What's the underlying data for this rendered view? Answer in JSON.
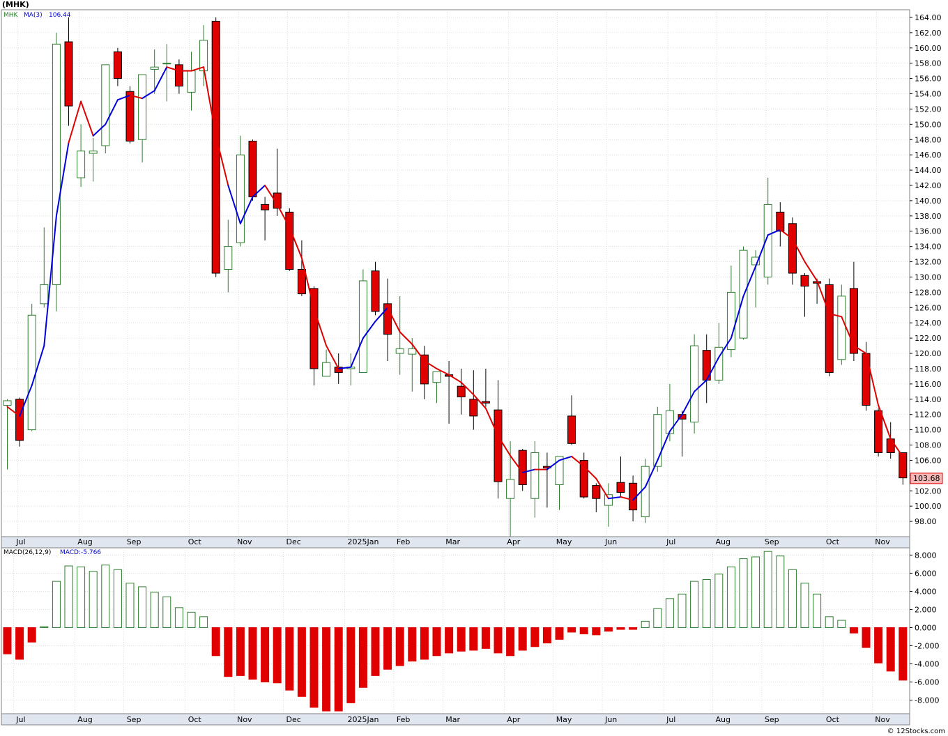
{
  "title": "(MHK)",
  "footer": "© 12Stocks.com",
  "colors": {
    "up_candle": "#2e7d2e",
    "down_candle": "#e00000",
    "ma_up": "#0000dd",
    "ma_down": "#e00000",
    "grid": "#cccccc",
    "price_tag_bg": "#f4b8b8",
    "price_tag_border": "#e00000"
  },
  "chart_data": [
    {
      "type": "candlestick",
      "ticker_label": "MHK",
      "ma_label": "MA(3)",
      "ma_value": "106.44",
      "last_price": "103.68",
      "ylim": [
        96,
        165
      ],
      "yticks": [
        "98.00",
        "100.00",
        "102.00",
        "104.00",
        "106.00",
        "108.00",
        "110.00",
        "112.00",
        "114.00",
        "116.00",
        "118.00",
        "120.00",
        "122.00",
        "124.00",
        "126.00",
        "128.00",
        "130.00",
        "132.00",
        "134.00",
        "136.00",
        "138.00",
        "140.00",
        "142.00",
        "144.00",
        "146.00",
        "148.00",
        "150.00",
        "152.00",
        "154.00",
        "156.00",
        "158.00",
        "160.00",
        "162.00",
        "164.00"
      ],
      "month_labels": [
        {
          "label": "Jul",
          "week": 1
        },
        {
          "label": "Aug",
          "week": 6
        },
        {
          "label": "Sep",
          "week": 10
        },
        {
          "label": "Oct",
          "week": 15
        },
        {
          "label": "Nov",
          "week": 19
        },
        {
          "label": "Dec",
          "week": 23
        },
        {
          "label": "2025Jan",
          "week": 28
        },
        {
          "label": "Feb",
          "week": 32
        },
        {
          "label": "Mar",
          "week": 36
        },
        {
          "label": "Apr",
          "week": 41
        },
        {
          "label": "May",
          "week": 45
        },
        {
          "label": "Jun",
          "week": 49
        },
        {
          "label": "Jul",
          "week": 54
        },
        {
          "label": "Aug",
          "week": 58
        },
        {
          "label": "Sep",
          "week": 62
        },
        {
          "label": "Oct",
          "week": 67
        },
        {
          "label": "Nov",
          "week": 71
        }
      ],
      "candles": [
        {
          "o": 113.2,
          "h": 114.0,
          "l": 104.8,
          "c": 113.8
        },
        {
          "o": 114.0,
          "h": 114.2,
          "l": 107.8,
          "c": 108.6
        },
        {
          "o": 110.0,
          "h": 126.5,
          "l": 109.8,
          "c": 125.0
        },
        {
          "o": 126.5,
          "h": 136.5,
          "l": 126.0,
          "c": 129.0
        },
        {
          "o": 129.0,
          "h": 162.0,
          "l": 125.5,
          "c": 160.5
        },
        {
          "o": 160.8,
          "h": 164.0,
          "l": 149.8,
          "c": 152.4
        },
        {
          "o": 143.0,
          "h": 150.0,
          "l": 141.8,
          "c": 146.5
        },
        {
          "o": 146.2,
          "h": 148.2,
          "l": 142.5,
          "c": 146.5
        },
        {
          "o": 147.2,
          "h": 157.8,
          "l": 146.2,
          "c": 157.8
        },
        {
          "o": 159.5,
          "h": 160.0,
          "l": 155.0,
          "c": 156.0
        },
        {
          "o": 154.3,
          "h": 155.0,
          "l": 147.5,
          "c": 147.8
        },
        {
          "o": 148.0,
          "h": 156.5,
          "l": 145.0,
          "c": 156.5
        },
        {
          "o": 157.2,
          "h": 159.8,
          "l": 154.0,
          "c": 157.5
        },
        {
          "o": 158.0,
          "h": 160.5,
          "l": 153.0,
          "c": 158.0
        },
        {
          "o": 157.8,
          "h": 158.5,
          "l": 154.0,
          "c": 155.0
        },
        {
          "o": 154.2,
          "h": 159.5,
          "l": 151.8,
          "c": 157.0
        },
        {
          "o": 157.0,
          "h": 163.0,
          "l": 155.0,
          "c": 161.0
        },
        {
          "o": 163.5,
          "h": 164.0,
          "l": 130.0,
          "c": 130.5
        },
        {
          "o": 131.0,
          "h": 137.5,
          "l": 128.0,
          "c": 134.0
        },
        {
          "o": 134.5,
          "h": 148.5,
          "l": 134.0,
          "c": 146.0
        },
        {
          "o": 147.8,
          "h": 148.0,
          "l": 140.0,
          "c": 140.5
        },
        {
          "o": 139.5,
          "h": 140.5,
          "l": 134.8,
          "c": 138.8
        },
        {
          "o": 141.0,
          "h": 146.8,
          "l": 138.0,
          "c": 139.0
        },
        {
          "o": 138.5,
          "h": 139.0,
          "l": 130.8,
          "c": 131.0
        },
        {
          "o": 131.0,
          "h": 134.8,
          "l": 127.5,
          "c": 127.8
        },
        {
          "o": 128.5,
          "h": 128.8,
          "l": 115.8,
          "c": 118.0
        },
        {
          "o": 117.0,
          "h": 120.5,
          "l": 117.0,
          "c": 118.8
        },
        {
          "o": 118.2,
          "h": 120.0,
          "l": 116.0,
          "c": 117.5
        },
        {
          "o": 118.0,
          "h": 120.0,
          "l": 115.8,
          "c": 118.2
        },
        {
          "o": 117.5,
          "h": 131.0,
          "l": 117.5,
          "c": 129.5
        },
        {
          "o": 130.8,
          "h": 132.0,
          "l": 125.0,
          "c": 125.5
        },
        {
          "o": 126.5,
          "h": 129.8,
          "l": 119.0,
          "c": 122.5
        },
        {
          "o": 120.0,
          "h": 127.5,
          "l": 117.2,
          "c": 120.6
        },
        {
          "o": 119.9,
          "h": 122.0,
          "l": 115.0,
          "c": 120.6
        },
        {
          "o": 119.8,
          "h": 121.0,
          "l": 114.0,
          "c": 116.0
        },
        {
          "o": 116.2,
          "h": 117.5,
          "l": 113.5,
          "c": 117.6
        },
        {
          "o": 117.2,
          "h": 119.0,
          "l": 110.8,
          "c": 117.0
        },
        {
          "o": 115.7,
          "h": 118.0,
          "l": 112.0,
          "c": 114.3
        },
        {
          "o": 114.0,
          "h": 117.8,
          "l": 110.0,
          "c": 111.8
        },
        {
          "o": 113.7,
          "h": 118.0,
          "l": 113.0,
          "c": 113.5
        },
        {
          "o": 112.6,
          "h": 116.5,
          "l": 101.0,
          "c": 103.2
        },
        {
          "o": 101.0,
          "h": 108.5,
          "l": 96.0,
          "c": 103.5
        },
        {
          "o": 107.3,
          "h": 107.5,
          "l": 102.0,
          "c": 102.8
        },
        {
          "o": 101.0,
          "h": 108.5,
          "l": 98.5,
          "c": 107.0
        },
        {
          "o": 105.2,
          "h": 107.0,
          "l": 99.8,
          "c": 105.0
        },
        {
          "o": 102.8,
          "h": 106.5,
          "l": 99.5,
          "c": 106.5
        },
        {
          "o": 111.8,
          "h": 114.5,
          "l": 108.0,
          "c": 108.2
        },
        {
          "o": 106.0,
          "h": 107.0,
          "l": 101.0,
          "c": 101.2
        },
        {
          "o": 102.7,
          "h": 103.0,
          "l": 99.2,
          "c": 101.0
        },
        {
          "o": 100.1,
          "h": 103.0,
          "l": 97.3,
          "c": 101.5
        },
        {
          "o": 103.1,
          "h": 106.5,
          "l": 101.3,
          "c": 101.8
        },
        {
          "o": 103.0,
          "h": 104.0,
          "l": 98.0,
          "c": 99.5
        },
        {
          "o": 98.6,
          "h": 106.2,
          "l": 97.8,
          "c": 105.2
        },
        {
          "o": 105.2,
          "h": 113.0,
          "l": 104.5,
          "c": 112.0
        },
        {
          "o": 109.5,
          "h": 116.0,
          "l": 108.5,
          "c": 112.5
        },
        {
          "o": 112.0,
          "h": 112.5,
          "l": 106.5,
          "c": 111.4
        },
        {
          "o": 111.0,
          "h": 122.5,
          "l": 109.5,
          "c": 121.0
        },
        {
          "o": 120.4,
          "h": 122.5,
          "l": 113.5,
          "c": 116.5
        },
        {
          "o": 116.5,
          "h": 124.0,
          "l": 116.0,
          "c": 120.8
        },
        {
          "o": 120.5,
          "h": 131.5,
          "l": 119.5,
          "c": 128.0
        },
        {
          "o": 122.0,
          "h": 134.0,
          "l": 121.8,
          "c": 133.5
        },
        {
          "o": 131.6,
          "h": 133.5,
          "l": 126.0,
          "c": 132.6
        },
        {
          "o": 130.0,
          "h": 143.0,
          "l": 129.0,
          "c": 139.5
        },
        {
          "o": 138.5,
          "h": 139.8,
          "l": 134.0,
          "c": 136.0
        },
        {
          "o": 137.0,
          "h": 137.8,
          "l": 129.0,
          "c": 130.5
        },
        {
          "o": 130.2,
          "h": 130.5,
          "l": 124.8,
          "c": 128.8
        },
        {
          "o": 129.4,
          "h": 129.8,
          "l": 126.5,
          "c": 129.2
        },
        {
          "o": 129.0,
          "h": 129.8,
          "l": 117.0,
          "c": 117.5
        },
        {
          "o": 119.2,
          "h": 129.0,
          "l": 118.5,
          "c": 127.5
        },
        {
          "o": 128.5,
          "h": 132.0,
          "l": 119.0,
          "c": 120.0
        },
        {
          "o": 120.0,
          "h": 121.5,
          "l": 112.5,
          "c": 113.2
        },
        {
          "o": 112.5,
          "h": 112.8,
          "l": 106.5,
          "c": 107.0
        },
        {
          "o": 108.8,
          "h": 111.0,
          "l": 106.2,
          "c": 107.0
        },
        {
          "o": 107.0,
          "h": 107.0,
          "l": 102.8,
          "c": 103.7
        }
      ],
      "ma3": [
        113.0,
        111.8,
        115.8,
        121.0,
        138.0,
        147.6,
        153.0,
        148.5,
        150.0,
        153.2,
        153.8,
        153.4,
        154.4,
        157.5,
        157.0,
        157.0,
        157.5,
        148.5,
        142.0,
        137.0,
        140.5,
        142.0,
        139.5,
        136.5,
        132.5,
        125.8,
        121.0,
        118.0,
        118.2,
        122.0,
        124.2,
        126.0,
        122.8,
        121.2,
        119.0,
        118.0,
        117.2,
        116.2,
        114.6,
        112.8,
        109.2,
        106.6,
        104.4,
        104.8,
        104.8,
        106.0,
        106.5,
        105.2,
        103.6,
        101.0,
        101.2,
        100.8,
        102.5,
        106.0,
        109.8,
        112.0,
        115.0,
        116.5,
        119.5,
        122.0,
        127.5,
        131.4,
        135.5,
        136.2,
        135.0,
        132.0,
        129.5,
        125.2,
        124.8,
        121.0,
        120.0,
        113.2,
        108.8,
        106.44
      ],
      "ma_color_flags": [
        "down",
        "down",
        "up",
        "up",
        "up",
        "up",
        "down",
        "down",
        "up",
        "up",
        "up",
        "down",
        "up",
        "up",
        "down",
        "down",
        "down",
        "down",
        "down",
        "up",
        "up",
        "up",
        "down",
        "down",
        "down",
        "down",
        "down",
        "down",
        "up",
        "up",
        "up",
        "up",
        "down",
        "down",
        "down",
        "down",
        "down",
        "down",
        "down",
        "down",
        "down",
        "down",
        "down",
        "up",
        "down",
        "up",
        "up",
        "down",
        "down",
        "down",
        "up",
        "down",
        "up",
        "up",
        "up",
        "up",
        "up",
        "up",
        "up",
        "up",
        "up",
        "up",
        "up",
        "up",
        "down",
        "down",
        "down",
        "down",
        "down",
        "down",
        "down",
        "down",
        "down",
        "down"
      ],
      "price_axis_side": "right"
    },
    {
      "type": "bar",
      "indicator_label": "MACD(26,12,9)",
      "value_label": "MACD:-5.766",
      "ylim": [
        -9.5,
        8.8
      ],
      "yticks": [
        "-8.000",
        "-6.000",
        "-4.000",
        "-2.000",
        "0.000",
        "2.000",
        "4.000",
        "6.000",
        "8.000"
      ],
      "values": [
        -2.9,
        -3.5,
        -1.6,
        0.1,
        5.1,
        6.8,
        6.7,
        6.2,
        6.9,
        6.4,
        4.9,
        4.5,
        3.9,
        3.4,
        2.2,
        1.7,
        1.2,
        -3.1,
        -5.4,
        -5.3,
        -5.7,
        -6.0,
        -6.1,
        -6.9,
        -7.6,
        -8.8,
        -9.2,
        -9.2,
        -8.3,
        -6.6,
        -5.3,
        -4.6,
        -4.2,
        -3.7,
        -3.5,
        -3.1,
        -2.8,
        -2.6,
        -2.5,
        -2.3,
        -2.8,
        -3.1,
        -2.5,
        -2.1,
        -1.7,
        -1.3,
        -0.5,
        -0.7,
        -0.8,
        -0.4,
        -0.2,
        -0.2,
        0.7,
        2.1,
        3.2,
        3.7,
        5.1,
        5.3,
        5.9,
        6.7,
        7.6,
        7.8,
        8.4,
        7.9,
        6.4,
        4.9,
        3.7,
        1.2,
        0.8,
        -0.6,
        -2.2,
        -3.9,
        -4.8,
        -5.8
      ]
    }
  ]
}
